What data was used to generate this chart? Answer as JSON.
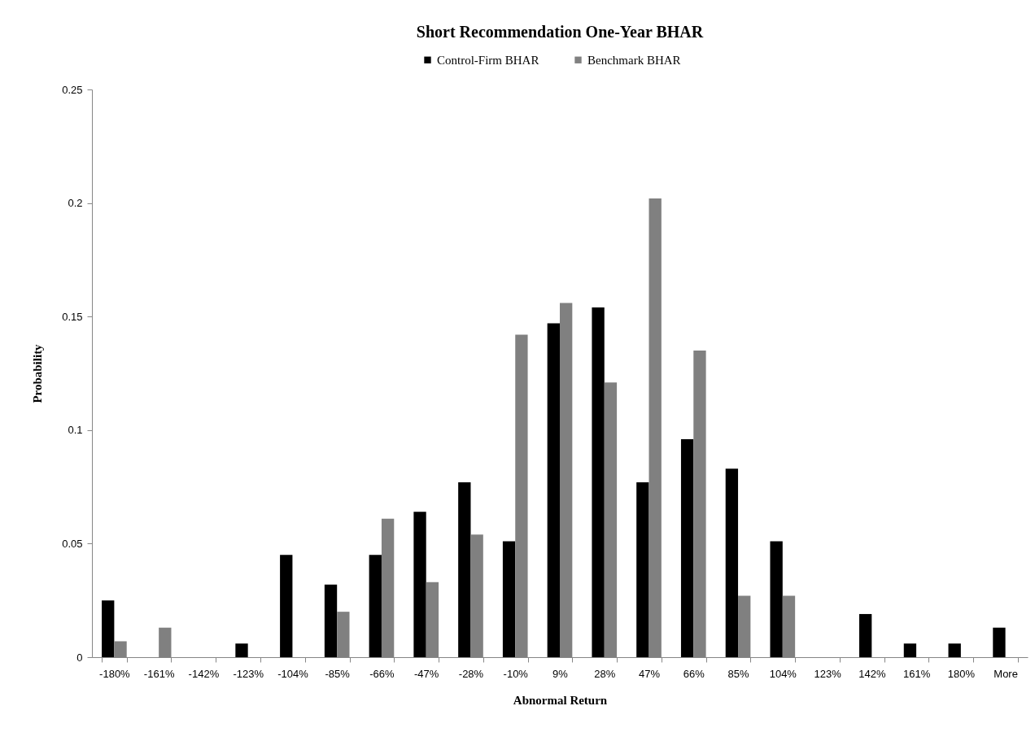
{
  "chart_data": {
    "type": "bar",
    "title": "Short Recommendation One-Year BHAR",
    "xlabel": "Abnormal Return",
    "ylabel": "Probability",
    "categories": [
      "-180%",
      "-161%",
      "-142%",
      "-123%",
      "-104%",
      "-85%",
      "-66%",
      "-47%",
      "-28%",
      "-10%",
      "9%",
      "28%",
      "47%",
      "66%",
      "85%",
      "104%",
      "123%",
      "142%",
      "161%",
      "180%",
      "More"
    ],
    "series": [
      {
        "name": "Control-Firm BHAR",
        "color": "#000000",
        "values": [
          0.025,
          0,
          0,
          0.006,
          0.045,
          0.032,
          0.045,
          0.064,
          0.077,
          0.051,
          0.147,
          0.154,
          0.077,
          0.096,
          0.083,
          0.051,
          0,
          0.019,
          0.006,
          0.006,
          0.013
        ]
      },
      {
        "name": "Benchmark BHAR",
        "color": "#808080",
        "values": [
          0.007,
          0.013,
          0,
          0,
          0,
          0.02,
          0.061,
          0.033,
          0.054,
          0.142,
          0.156,
          0.121,
          0.202,
          0.135,
          0.027,
          0.027,
          0,
          0,
          0,
          0,
          0
        ]
      }
    ],
    "ylim": [
      0,
      0.25
    ],
    "yticks": [
      0,
      0.05,
      0.1,
      0.15,
      0.2,
      0.25
    ],
    "grid": false,
    "legend": "top"
  }
}
